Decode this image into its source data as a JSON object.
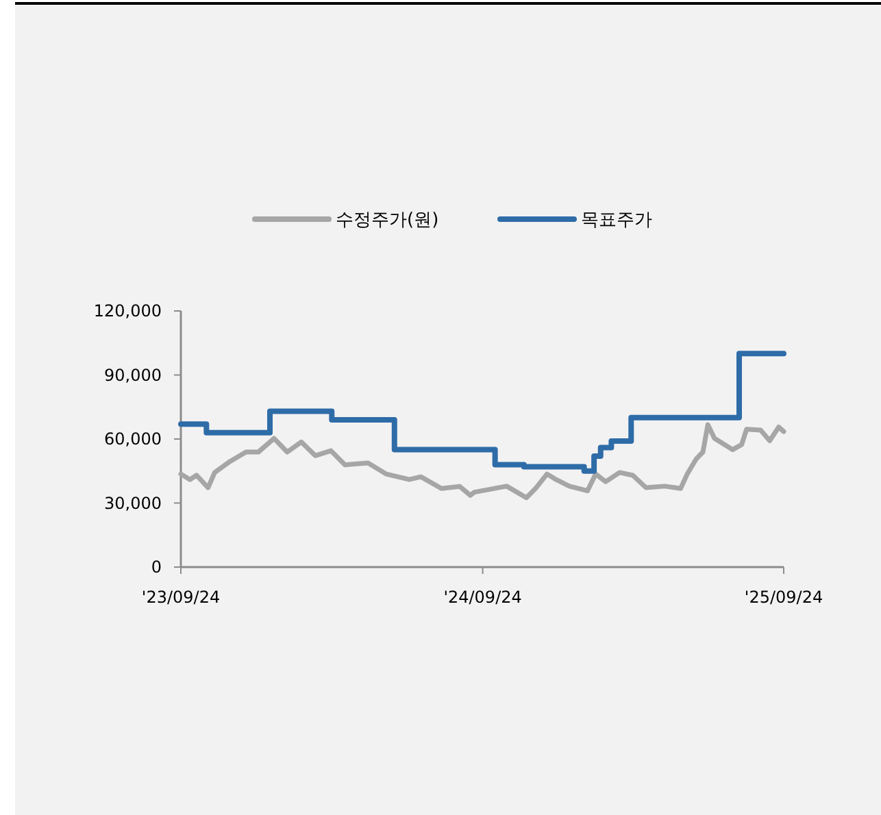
{
  "chart_data": {
    "type": "line",
    "legend": "top",
    "ylim": [
      0,
      120000
    ],
    "yticks": [
      0,
      {
        "value": 30000,
        "label": "30,000"
      },
      {
        "value": 60000,
        "label": "60,000"
      },
      {
        "value": 90000,
        "label": "90,000"
      },
      {
        "value": 120000,
        "label": "120,000"
      }
    ],
    "xlim": [
      "2023-09-24",
      "2025-09-24"
    ],
    "xticks": [
      {
        "value": "2023-09-24",
        "label": "'23/09/24"
      },
      {
        "value": "2024-09-24",
        "label": "'24/09/24"
      },
      {
        "value": "2025-09-24",
        "label": "'25/09/24"
      }
    ],
    "series": [
      {
        "name": "수정주가(원)",
        "color": "#a6a6a6",
        "x": [
          "2023-09-24",
          "2023-10-05",
          "2023-10-13",
          "2023-10-27",
          "2023-11-04",
          "2023-11-23",
          "2023-12-12",
          "2023-12-27",
          "2024-01-15",
          "2024-01-31",
          "2024-02-17",
          "2024-03-05",
          "2024-03-24",
          "2024-04-10",
          "2024-05-08",
          "2024-05-30",
          "2024-06-27",
          "2024-07-11",
          "2024-08-05",
          "2024-08-27",
          "2024-09-09",
          "2024-09-14",
          "2024-10-23",
          "2024-11-16",
          "2024-11-27",
          "2024-12-11",
          "2024-12-22",
          "2025-01-07",
          "2025-01-29",
          "2025-02-08",
          "2025-02-20",
          "2025-03-09",
          "2025-03-25",
          "2025-04-10",
          "2025-05-03",
          "2025-05-22",
          "2025-05-30",
          "2025-06-10",
          "2025-06-18",
          "2025-06-24",
          "2025-07-02",
          "2025-07-24",
          "2025-08-04",
          "2025-08-10",
          "2025-08-27",
          "2025-09-07",
          "2025-09-18",
          "2025-09-24"
        ],
        "values": [
          43600,
          41000,
          43000,
          37200,
          44300,
          49600,
          53900,
          53900,
          60300,
          53900,
          58600,
          52200,
          54500,
          47900,
          48800,
          43600,
          41000,
          42300,
          36800,
          37800,
          33600,
          35100,
          37900,
          32500,
          36800,
          43600,
          41000,
          37900,
          35700,
          43600,
          40000,
          44300,
          43000,
          37200,
          37900,
          36800,
          43600,
          50700,
          53900,
          66700,
          60300,
          55000,
          57400,
          64600,
          64200,
          59200,
          65600,
          63500
        ]
      },
      {
        "name": "목표주가",
        "type": "step",
        "color": "#2e6ca8",
        "x": [
          "2023-09-24",
          "2023-10-25",
          "2024-01-10",
          "2024-03-25",
          "2024-06-09",
          "2024-10-09",
          "2024-11-13",
          "2025-01-25",
          "2025-02-06",
          "2025-02-14",
          "2025-02-27",
          "2025-03-23",
          "2025-08-01",
          "2025-09-24"
        ],
        "values": [
          67000,
          63000,
          73000,
          69000,
          55000,
          48000,
          47000,
          45000,
          52000,
          56000,
          59000,
          70000,
          100000,
          100000
        ]
      }
    ]
  }
}
